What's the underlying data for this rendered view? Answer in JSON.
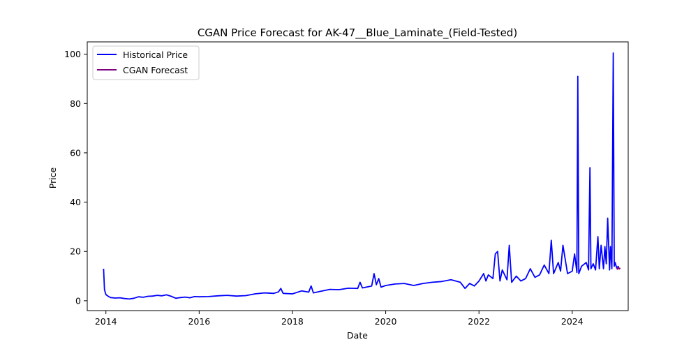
{
  "chart_data": {
    "type": "line",
    "title": "CGAN Price Forecast for AK-47__Blue_Laminate_(Field-Tested)",
    "xlabel": "Date",
    "ylabel": "Price",
    "xlim": [
      2013.6,
      2025.2
    ],
    "ylim": [
      -4,
      105
    ],
    "xticks": [
      2014,
      2016,
      2018,
      2020,
      2022,
      2024
    ],
    "xtick_labels": [
      "2014",
      "2016",
      "2018",
      "2020",
      "2022",
      "2024"
    ],
    "yticks": [
      0,
      20,
      40,
      60,
      80,
      100
    ],
    "ytick_labels": [
      "0",
      "20",
      "40",
      "60",
      "80",
      "100"
    ],
    "grid": false,
    "legend_placement": "top-left",
    "colors": {
      "historical": "#0000ff",
      "forecast": "#800080"
    },
    "series": [
      {
        "name": "Historical Price",
        "color": "#0000ff",
        "x": [
          2013.95,
          2013.97,
          2014.0,
          2014.05,
          2014.1,
          2014.2,
          2014.3,
          2014.4,
          2014.5,
          2014.6,
          2014.7,
          2014.8,
          2014.9,
          2015.0,
          2015.1,
          2015.2,
          2015.3,
          2015.4,
          2015.5,
          2015.6,
          2015.7,
          2015.8,
          2015.9,
          2016.0,
          2016.2,
          2016.4,
          2016.6,
          2016.8,
          2017.0,
          2017.2,
          2017.4,
          2017.6,
          2017.7,
          2017.75,
          2017.8,
          2018.0,
          2018.2,
          2018.35,
          2018.4,
          2018.45,
          2018.6,
          2018.8,
          2019.0,
          2019.2,
          2019.4,
          2019.45,
          2019.5,
          2019.6,
          2019.7,
          2019.75,
          2019.8,
          2019.85,
          2019.9,
          2020.0,
          2020.2,
          2020.4,
          2020.6,
          2020.8,
          2021.0,
          2021.2,
          2021.4,
          2021.6,
          2021.7,
          2021.8,
          2021.9,
          2022.0,
          2022.1,
          2022.15,
          2022.2,
          2022.3,
          2022.35,
          2022.4,
          2022.45,
          2022.5,
          2022.6,
          2022.65,
          2022.7,
          2022.8,
          2022.9,
          2023.0,
          2023.1,
          2023.2,
          2023.3,
          2023.4,
          2023.5,
          2023.55,
          2023.6,
          2023.7,
          2023.75,
          2023.8,
          2023.9,
          2024.0,
          2024.05,
          2024.1,
          2024.12,
          2024.14,
          2024.2,
          2024.3,
          2024.35,
          2024.38,
          2024.4,
          2024.45,
          2024.5,
          2024.55,
          2024.58,
          2024.62,
          2024.67,
          2024.7,
          2024.73,
          2024.76,
          2024.8,
          2024.82,
          2024.85,
          2024.88,
          2024.9,
          2024.92,
          2024.95,
          2025.0
        ],
        "values": [
          13,
          4.5,
          2.5,
          1.8,
          1.3,
          1.1,
          1.2,
          0.9,
          0.7,
          1.0,
          1.6,
          1.4,
          1.8,
          1.9,
          2.2,
          2.0,
          2.4,
          1.8,
          1.0,
          1.3,
          1.5,
          1.2,
          1.7,
          1.6,
          1.7,
          2.0,
          2.2,
          1.9,
          2.1,
          2.8,
          3.2,
          3.0,
          3.6,
          5.0,
          3.0,
          2.8,
          4.0,
          3.5,
          6.0,
          3.2,
          3.8,
          4.6,
          4.5,
          5.1,
          5.0,
          7.5,
          5.2,
          5.6,
          6.0,
          11.0,
          6.5,
          9.0,
          5.5,
          6.2,
          6.8,
          7.0,
          6.2,
          7.0,
          7.5,
          7.8,
          8.5,
          7.5,
          5.0,
          7.0,
          6.0,
          8.0,
          11.0,
          8.0,
          10.5,
          9.0,
          19.0,
          20.0,
          8.0,
          12.5,
          8.5,
          22.5,
          7.5,
          10.0,
          8.0,
          9.0,
          13.0,
          9.5,
          10.5,
          14.5,
          11.0,
          24.5,
          11.0,
          15.5,
          12.0,
          22.5,
          11.0,
          12.0,
          19.0,
          11.5,
          91.0,
          11.0,
          14.0,
          15.5,
          12.5,
          54.0,
          13.0,
          15.0,
          12.5,
          26.0,
          13.0,
          22.5,
          13.0,
          22.0,
          15.0,
          33.5,
          12.5,
          22.0,
          13.0,
          100.5,
          14.0,
          15.5,
          13.5,
          14.0
        ]
      },
      {
        "name": "CGAN Forecast",
        "color": "#800080",
        "x": [
          2024.95,
          2024.97,
          2024.99,
          2025.01,
          2025.03
        ],
        "values": [
          13.2,
          12.8,
          13.6,
          12.9,
          13.3
        ]
      }
    ]
  }
}
